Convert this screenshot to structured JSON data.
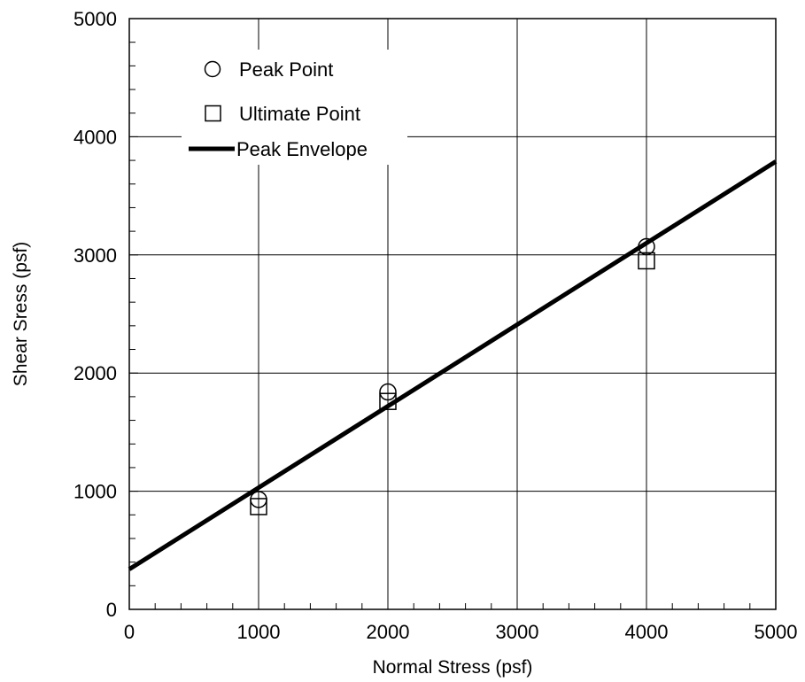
{
  "chart_data": {
    "type": "scatter",
    "xlabel": "Normal Stress (psf)",
    "ylabel": "Shear Sress (psf)",
    "xlim": [
      0,
      5000
    ],
    "ylim": [
      0,
      5000
    ],
    "x_ticks": [
      0,
      1000,
      2000,
      3000,
      4000,
      5000
    ],
    "y_ticks": [
      0,
      1000,
      2000,
      3000,
      4000,
      5000
    ],
    "x_tick_labels": [
      "0",
      "1000",
      "2000",
      "3000",
      "4000",
      "5000"
    ],
    "y_tick_labels": [
      "0",
      "1000",
      "2000",
      "3000",
      "4000",
      "5000"
    ],
    "grid": true,
    "legend_position": "top-left",
    "series": [
      {
        "name": "Peak Point",
        "kind": "points",
        "marker": "circle",
        "x": [
          1000,
          2000,
          4000
        ],
        "y": [
          930,
          1840,
          3070
        ]
      },
      {
        "name": "Ultimate Point",
        "kind": "points",
        "marker": "square",
        "x": [
          1000,
          2000,
          4000
        ],
        "y": [
          870,
          1760,
          2950
        ]
      },
      {
        "name": "Peak Envelope",
        "kind": "line",
        "color": "#000000",
        "x": [
          0,
          5000
        ],
        "y": [
          340,
          3790
        ]
      }
    ]
  }
}
